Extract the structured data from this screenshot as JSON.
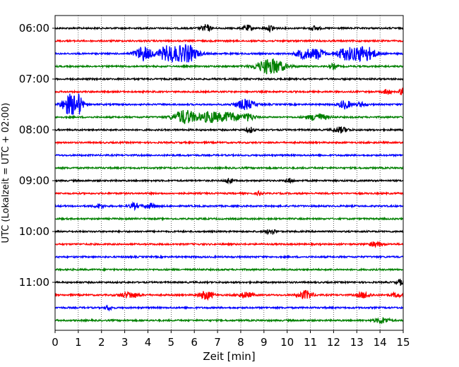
{
  "chart_data": {
    "type": "line",
    "xlabel": "Zeit  [min]",
    "ylabel": "UTC (Lokalzeit = UTC + 02:00)",
    "xlim": [
      0,
      15
    ],
    "x_ticks": [
      "0",
      "1",
      "2",
      "3",
      "4",
      "5",
      "6",
      "7",
      "8",
      "9",
      "10",
      "11",
      "12",
      "13",
      "14",
      "15"
    ],
    "y_tick_labels": [
      "06:00",
      "07:00",
      "08:00",
      "09:00",
      "10:00",
      "11:00"
    ],
    "grid": "vertical dotted at each minute",
    "trace_interval_min": 15,
    "color_cycle": [
      "#000000",
      "#ff0000",
      "#0000ff",
      "#008000"
    ],
    "traces": [
      {
        "start": "06:00",
        "color": "#000000",
        "events": [
          {
            "t": 6.5,
            "amp": 5,
            "dur": 0.2
          },
          {
            "t": 8.3,
            "amp": 4,
            "dur": 0.2
          },
          {
            "t": 9.3,
            "amp": 4,
            "dur": 0.2
          },
          {
            "t": 11.2,
            "amp": 3,
            "dur": 0.2
          }
        ]
      },
      {
        "start": "06:15",
        "color": "#ff0000",
        "events": []
      },
      {
        "start": "06:30",
        "color": "#0000ff",
        "events": [
          {
            "t": 3.8,
            "amp": 10,
            "dur": 0.35
          },
          {
            "t": 4.9,
            "amp": 11,
            "dur": 0.45
          },
          {
            "t": 5.7,
            "amp": 12,
            "dur": 0.45
          },
          {
            "t": 10.7,
            "amp": 7,
            "dur": 0.3
          },
          {
            "t": 11.3,
            "amp": 8,
            "dur": 0.3
          },
          {
            "t": 12.5,
            "amp": 8,
            "dur": 0.4
          },
          {
            "t": 13.3,
            "amp": 11,
            "dur": 0.5
          }
        ]
      },
      {
        "start": "06:45",
        "color": "#008000",
        "events": [
          {
            "t": 9.3,
            "amp": 11,
            "dur": 0.6
          },
          {
            "t": 12.0,
            "amp": 4,
            "dur": 0.15
          }
        ]
      },
      {
        "start": "07:00",
        "color": "#000000",
        "events": []
      },
      {
        "start": "07:15",
        "color": "#ff0000",
        "events": [
          {
            "t": 14.3,
            "amp": 4,
            "dur": 0.15
          },
          {
            "t": 14.95,
            "amp": 6,
            "dur": 0.1
          }
        ]
      },
      {
        "start": "07:30",
        "color": "#0000ff",
        "events": [
          {
            "t": 0.6,
            "amp": 14,
            "dur": 0.3
          },
          {
            "t": 1.0,
            "amp": 14,
            "dur": 0.2
          },
          {
            "t": 8.2,
            "amp": 7,
            "dur": 0.4
          },
          {
            "t": 12.5,
            "amp": 6,
            "dur": 0.25
          },
          {
            "t": 13.2,
            "amp": 3,
            "dur": 0.2
          }
        ]
      },
      {
        "start": "07:45",
        "color": "#008000",
        "events": [
          {
            "t": 5.6,
            "amp": 10,
            "dur": 0.5
          },
          {
            "t": 6.7,
            "amp": 8,
            "dur": 0.4
          },
          {
            "t": 7.5,
            "amp": 7,
            "dur": 0.4
          },
          {
            "t": 8.3,
            "amp": 5,
            "dur": 0.3
          },
          {
            "t": 11.3,
            "amp": 5,
            "dur": 0.4
          }
        ]
      },
      {
        "start": "08:00",
        "color": "#000000",
        "events": [
          {
            "t": 8.4,
            "amp": 4,
            "dur": 0.15
          },
          {
            "t": 12.3,
            "amp": 4,
            "dur": 0.3
          }
        ]
      },
      {
        "start": "08:15",
        "color": "#ff0000",
        "events": []
      },
      {
        "start": "08:30",
        "color": "#0000ff",
        "events": []
      },
      {
        "start": "08:45",
        "color": "#008000",
        "events": []
      },
      {
        "start": "09:00",
        "color": "#000000",
        "events": [
          {
            "t": 7.5,
            "amp": 4,
            "dur": 0.15
          },
          {
            "t": 10.1,
            "amp": 3,
            "dur": 0.15
          }
        ]
      },
      {
        "start": "09:15",
        "color": "#ff0000",
        "events": [
          {
            "t": 8.8,
            "amp": 3,
            "dur": 0.1
          }
        ]
      },
      {
        "start": "09:30",
        "color": "#0000ff",
        "events": [
          {
            "t": 1.9,
            "amp": 3,
            "dur": 0.2
          },
          {
            "t": 3.4,
            "amp": 4,
            "dur": 0.2
          },
          {
            "t": 4.1,
            "amp": 3,
            "dur": 0.3
          }
        ]
      },
      {
        "start": "09:45",
        "color": "#008000",
        "events": []
      },
      {
        "start": "10:00",
        "color": "#000000",
        "events": [
          {
            "t": 9.3,
            "amp": 4,
            "dur": 0.2
          }
        ]
      },
      {
        "start": "10:15",
        "color": "#ff0000",
        "events": [
          {
            "t": 13.8,
            "amp": 3,
            "dur": 0.3
          }
        ]
      },
      {
        "start": "10:30",
        "color": "#0000ff",
        "events": []
      },
      {
        "start": "10:45",
        "color": "#008000",
        "events": []
      },
      {
        "start": "11:00",
        "color": "#000000",
        "events": [
          {
            "t": 14.9,
            "amp": 4,
            "dur": 0.15
          }
        ]
      },
      {
        "start": "11:15",
        "color": "#ff0000",
        "events": [
          {
            "t": 3.2,
            "amp": 4,
            "dur": 0.4
          },
          {
            "t": 6.5,
            "amp": 6,
            "dur": 0.3
          },
          {
            "t": 8.2,
            "amp": 4,
            "dur": 0.3
          },
          {
            "t": 10.8,
            "amp": 6,
            "dur": 0.3
          },
          {
            "t": 13.3,
            "amp": 4,
            "dur": 0.3
          },
          {
            "t": 14.7,
            "amp": 3,
            "dur": 0.2
          }
        ]
      },
      {
        "start": "11:30",
        "color": "#0000ff",
        "events": [
          {
            "t": 2.3,
            "amp": 3,
            "dur": 0.15
          }
        ]
      },
      {
        "start": "11:45",
        "color": "#008000",
        "events": [
          {
            "t": 14.1,
            "amp": 4,
            "dur": 0.3
          }
        ]
      }
    ]
  }
}
